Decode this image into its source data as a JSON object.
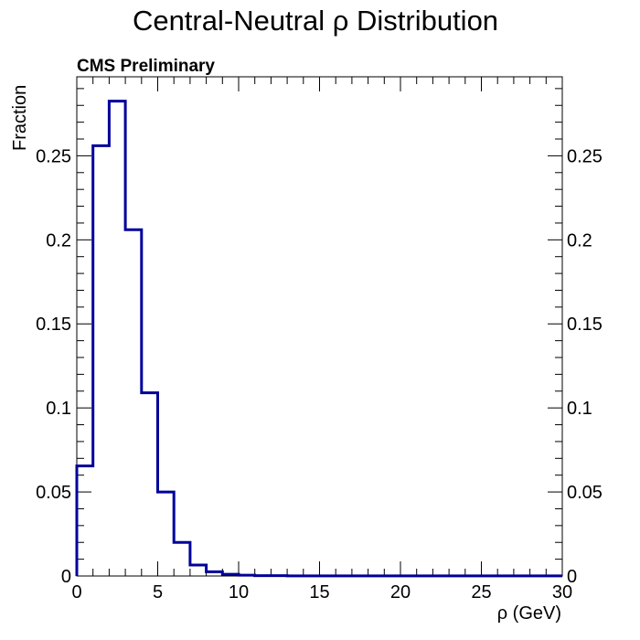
{
  "chart_data": {
    "type": "histogram-step",
    "title": "Central-Neutral ρ Distribution",
    "label": "CMS Preliminary",
    "xlabel": "ρ (GeV)",
    "ylabel": "Fraction",
    "xlim": [
      0,
      30
    ],
    "ylim": [
      0,
      0.297
    ],
    "x_ticks": [
      0,
      5,
      10,
      15,
      20,
      25,
      30
    ],
    "x_tick_labels": [
      "0",
      "5",
      "10",
      "15",
      "20",
      "25",
      "30"
    ],
    "y_ticks": [
      0,
      0.05,
      0.1,
      0.15,
      0.2,
      0.25
    ],
    "y_tick_labels": [
      "0",
      "0.05",
      "0.1",
      "0.15",
      "0.2",
      "0.25"
    ],
    "bin_edges": [
      0,
      1,
      2,
      3,
      4,
      5,
      6,
      7,
      8,
      9,
      10,
      11,
      12,
      13,
      14,
      15,
      16,
      17,
      18,
      19,
      20,
      21,
      22,
      23,
      24,
      25,
      26,
      27,
      28,
      29,
      30
    ],
    "values": [
      0.0655,
      0.256,
      0.2825,
      0.206,
      0.109,
      0.05,
      0.02,
      0.0065,
      0.0025,
      0.001,
      0.0005,
      0.0002,
      0.0002,
      0.0001,
      0.0001,
      0.0001,
      0.0001,
      0.0001,
      0.0001,
      0.0001,
      0.0001,
      0.0001,
      0.0001,
      0.0001,
      0.0001,
      0.0001,
      0.0001,
      0.0001,
      0.0001,
      0.0001
    ],
    "line_color": "#000099",
    "grid": false,
    "right_axis_mirrored": true
  }
}
